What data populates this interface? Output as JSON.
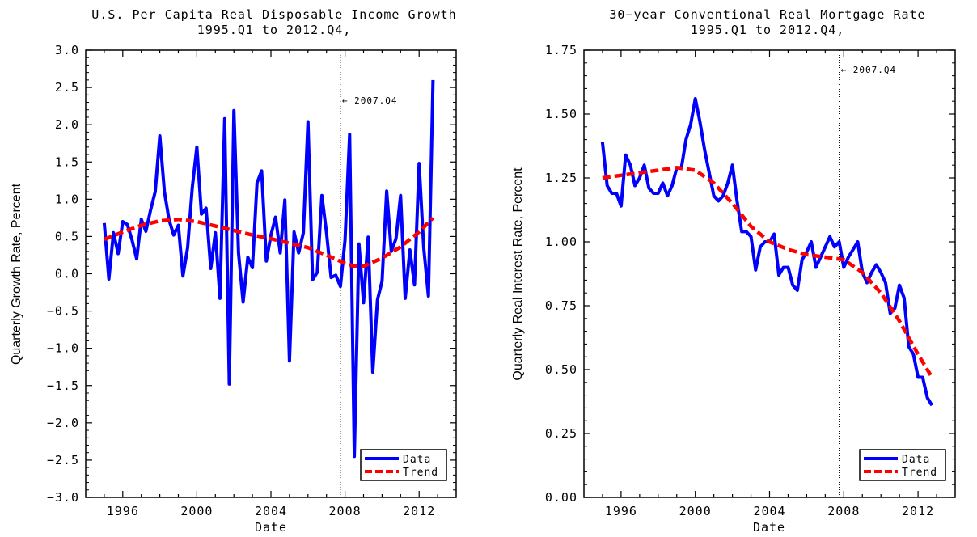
{
  "chart_data": [
    {
      "type": "line",
      "title": "U.S. Per Capita Real Disposable Income Growth",
      "subtitle": "1995.Q1 to 2012.Q4,",
      "xlabel": "Date",
      "ylabel": "Quarterly Growth Rate, Percent",
      "xlim": [
        1994.0,
        2014.0
      ],
      "ylim": [
        -3.0,
        3.0
      ],
      "x_ticks": [
        1996,
        2000,
        2004,
        2008,
        2012
      ],
      "y_ticks": [
        -3.0,
        -2.5,
        -2.0,
        -1.5,
        -1.0,
        -0.5,
        0.0,
        0.5,
        1.0,
        1.5,
        2.0,
        2.5,
        3.0
      ],
      "y_tick_labels": [
        "−3.0",
        "−2.5",
        "−2.0",
        "−1.5",
        "−1.0",
        "−0.5",
        "0.0",
        "0.5",
        "1.0",
        "1.5",
        "2.0",
        "2.5",
        "3.0"
      ],
      "vline": {
        "x": 2007.75,
        "label": "← 2007.Q4"
      },
      "legend_position": "bottom-right",
      "series": [
        {
          "name": "Data",
          "color": "#0000ff",
          "style": "solid",
          "x": [
            1995.0,
            1995.25,
            1995.5,
            1995.75,
            1996.0,
            1996.25,
            1996.5,
            1996.75,
            1997.0,
            1997.25,
            1997.5,
            1997.75,
            1998.0,
            1998.25,
            1998.5,
            1998.75,
            1999.0,
            1999.25,
            1999.5,
            1999.75,
            2000.0,
            2000.25,
            2000.5,
            2000.75,
            2001.0,
            2001.25,
            2001.5,
            2001.75,
            2002.0,
            2002.25,
            2002.5,
            2002.75,
            2003.0,
            2003.25,
            2003.5,
            2003.75,
            2004.0,
            2004.25,
            2004.5,
            2004.75,
            2005.0,
            2005.25,
            2005.5,
            2005.75,
            2006.0,
            2006.25,
            2006.5,
            2006.75,
            2007.0,
            2007.25,
            2007.5,
            2007.75,
            2008.0,
            2008.25,
            2008.5,
            2008.75,
            2009.0,
            2009.25,
            2009.5,
            2009.75,
            2010.0,
            2010.25,
            2010.5,
            2010.75,
            2011.0,
            2011.25,
            2011.5,
            2011.75,
            2012.0,
            2012.25,
            2012.5,
            2012.75
          ],
          "y": [
            0.68,
            -0.07,
            0.55,
            0.27,
            0.7,
            0.66,
            0.45,
            0.2,
            0.73,
            0.57,
            0.85,
            1.1,
            1.85,
            1.1,
            0.72,
            0.52,
            0.65,
            -0.03,
            0.35,
            1.15,
            1.7,
            0.8,
            0.88,
            0.07,
            0.55,
            -0.33,
            2.08,
            -1.48,
            2.19,
            0.28,
            -0.38,
            0.22,
            0.08,
            1.22,
            1.38,
            0.17,
            0.52,
            0.76,
            0.28,
            0.99,
            -1.17,
            0.56,
            0.28,
            0.55,
            2.04,
            -0.08,
            0.02,
            1.05,
            0.55,
            -0.05,
            -0.02,
            -0.17,
            0.45,
            1.87,
            -2.45,
            0.4,
            -0.39,
            0.49,
            -1.32,
            -0.35,
            -0.1,
            1.11,
            0.3,
            0.47,
            1.05,
            -0.33,
            0.32,
            -0.15,
            1.48,
            0.35,
            -0.3,
            2.6
          ]
        },
        {
          "name": "Trend",
          "color": "#ff0000",
          "style": "dashed",
          "x": [
            1995.0,
            1996.0,
            1997.0,
            1998.0,
            1999.0,
            2000.0,
            2001.0,
            2002.0,
            2003.0,
            2004.0,
            2005.0,
            2006.0,
            2007.0,
            2008.0,
            2008.5,
            2009.0,
            2010.0,
            2011.0,
            2012.0,
            2012.75
          ],
          "y": [
            0.46,
            0.56,
            0.65,
            0.71,
            0.73,
            0.7,
            0.64,
            0.58,
            0.52,
            0.47,
            0.41,
            0.35,
            0.25,
            0.14,
            0.1,
            0.1,
            0.21,
            0.36,
            0.56,
            0.75
          ]
        }
      ]
    },
    {
      "type": "line",
      "title": "30−year Conventional Real Mortgage Rate",
      "subtitle": "1995.Q1 to 2012.Q4,",
      "xlabel": "Date",
      "ylabel": "Quarterly Real Interest Rate, Percent",
      "xlim": [
        1994.0,
        2014.0
      ],
      "ylim": [
        0.0,
        1.75
      ],
      "x_ticks": [
        1996,
        2000,
        2004,
        2008,
        2012
      ],
      "y_ticks": [
        0.0,
        0.25,
        0.5,
        0.75,
        1.0,
        1.25,
        1.5,
        1.75
      ],
      "y_tick_labels": [
        "0.00",
        "0.25",
        "0.50",
        "0.75",
        "1.00",
        "1.25",
        "1.50",
        "1.75"
      ],
      "vline": {
        "x": 2007.75,
        "label": "← 2007.Q4"
      },
      "legend_position": "bottom-right",
      "series": [
        {
          "name": "Data",
          "color": "#0000ff",
          "style": "solid",
          "x": [
            1995.0,
            1995.25,
            1995.5,
            1995.75,
            1996.0,
            1996.25,
            1996.5,
            1996.75,
            1997.0,
            1997.25,
            1997.5,
            1997.75,
            1998.0,
            1998.25,
            1998.5,
            1998.75,
            1999.0,
            1999.25,
            1999.5,
            1999.75,
            2000.0,
            2000.25,
            2000.5,
            2000.75,
            2001.0,
            2001.25,
            2001.5,
            2001.75,
            2002.0,
            2002.25,
            2002.5,
            2002.75,
            2003.0,
            2003.25,
            2003.5,
            2003.75,
            2004.0,
            2004.25,
            2004.5,
            2004.75,
            2005.0,
            2005.25,
            2005.5,
            2005.75,
            2006.0,
            2006.25,
            2006.5,
            2006.75,
            2007.0,
            2007.25,
            2007.5,
            2007.75,
            2008.0,
            2008.25,
            2008.5,
            2008.75,
            2009.0,
            2009.25,
            2009.5,
            2009.75,
            2010.0,
            2010.25,
            2010.5,
            2010.75,
            2011.0,
            2011.25,
            2011.5,
            2011.75,
            2012.0,
            2012.25,
            2012.5,
            2012.75
          ],
          "y": [
            1.39,
            1.22,
            1.19,
            1.19,
            1.14,
            1.34,
            1.3,
            1.22,
            1.25,
            1.3,
            1.21,
            1.19,
            1.19,
            1.23,
            1.18,
            1.22,
            1.29,
            1.29,
            1.4,
            1.46,
            1.56,
            1.47,
            1.36,
            1.27,
            1.18,
            1.16,
            1.18,
            1.23,
            1.3,
            1.16,
            1.04,
            1.04,
            1.02,
            0.89,
            0.98,
            1.0,
            1.0,
            1.03,
            0.87,
            0.9,
            0.9,
            0.83,
            0.81,
            0.93,
            0.96,
            1.0,
            0.9,
            0.94,
            0.98,
            1.02,
            0.98,
            1.0,
            0.9,
            0.94,
            0.97,
            1.0,
            0.88,
            0.84,
            0.88,
            0.91,
            0.88,
            0.84,
            0.72,
            0.74,
            0.83,
            0.78,
            0.59,
            0.56,
            0.47,
            0.47,
            0.39,
            0.36
          ]
        },
        {
          "name": "Trend",
          "color": "#ff0000",
          "style": "dashed",
          "x": [
            1995.0,
            1996.0,
            1997.0,
            1998.0,
            1999.0,
            2000.0,
            2001.0,
            2002.0,
            2003.0,
            2004.0,
            2005.0,
            2006.0,
            2007.0,
            2008.0,
            2009.0,
            2010.0,
            2011.0,
            2012.0,
            2012.75
          ],
          "y": [
            1.25,
            1.26,
            1.27,
            1.28,
            1.29,
            1.28,
            1.23,
            1.15,
            1.06,
            1.0,
            0.97,
            0.95,
            0.94,
            0.93,
            0.88,
            0.8,
            0.69,
            0.56,
            0.47
          ]
        }
      ]
    }
  ]
}
